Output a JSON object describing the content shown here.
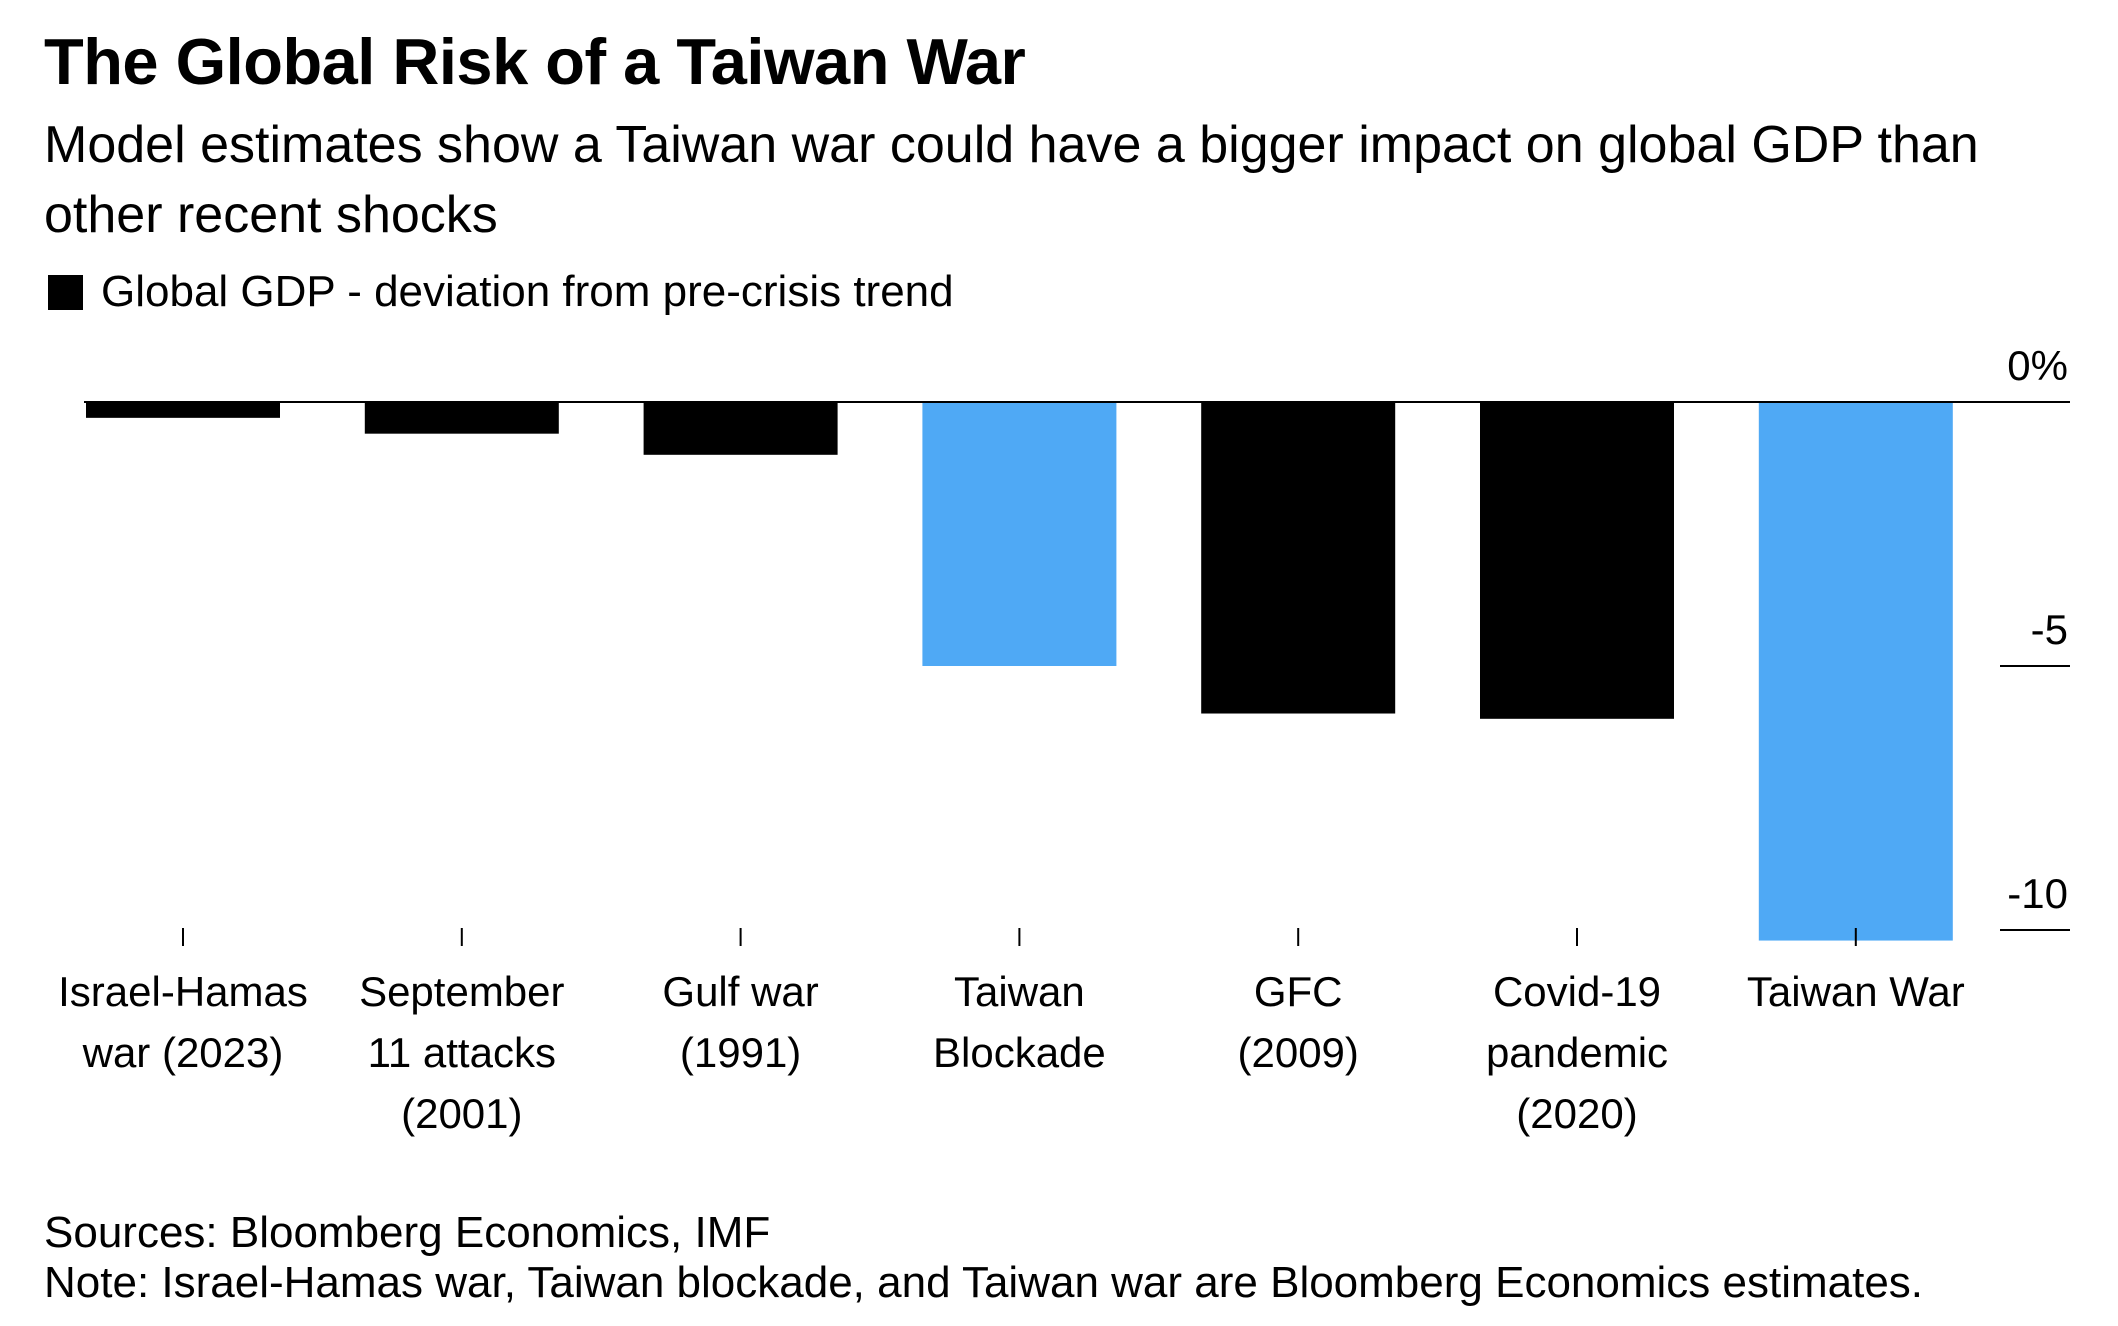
{
  "header": {
    "title": "The Global Risk of a Taiwan War",
    "subtitle": "Model estimates show a Taiwan war could have a bigger impact on global GDP than other recent shocks"
  },
  "legend": {
    "label": "Global GDP - deviation from pre-crisis trend",
    "color": "#000000"
  },
  "colors": {
    "default_bar": "#000000",
    "highlight_bar": "#4fa9f5"
  },
  "chart_data": {
    "type": "bar",
    "title": "The Global Risk of a Taiwan War",
    "subtitle": "Model estimates show a Taiwan war could have a bigger impact on global GDP than other recent shocks",
    "categories": [
      [
        "Israel-Hamas",
        "war (2023)"
      ],
      [
        "September",
        "11 attacks",
        "(2001)"
      ],
      [
        "Gulf war",
        "(1991)"
      ],
      [
        "Taiwan",
        "Blockade"
      ],
      [
        "GFC",
        "(2009)"
      ],
      [
        "Covid-19",
        "pandemic",
        "(2020)"
      ],
      [
        "Taiwan War"
      ]
    ],
    "series": [
      {
        "name": "Global GDP - deviation from pre-crisis trend",
        "values": [
          -0.3,
          -0.6,
          -1.0,
          -5.0,
          -5.9,
          -6.0,
          -10.2
        ]
      }
    ],
    "highlight": [
      false,
      false,
      false,
      true,
      false,
      false,
      true
    ],
    "ylim": [
      -10.2,
      0
    ],
    "yticks": [
      {
        "value": 0,
        "label": "0%"
      },
      {
        "value": -5,
        "label": "-5"
      },
      {
        "value": -10,
        "label": "-10"
      }
    ],
    "axis_side": "right",
    "grid": false,
    "legend_position": "top-left"
  },
  "footer": {
    "sources": "Sources: Bloomberg Economics, IMF",
    "note": "Note: Israel-Hamas war, Taiwan blockade, and Taiwan war are Bloomberg Economics estimates."
  }
}
